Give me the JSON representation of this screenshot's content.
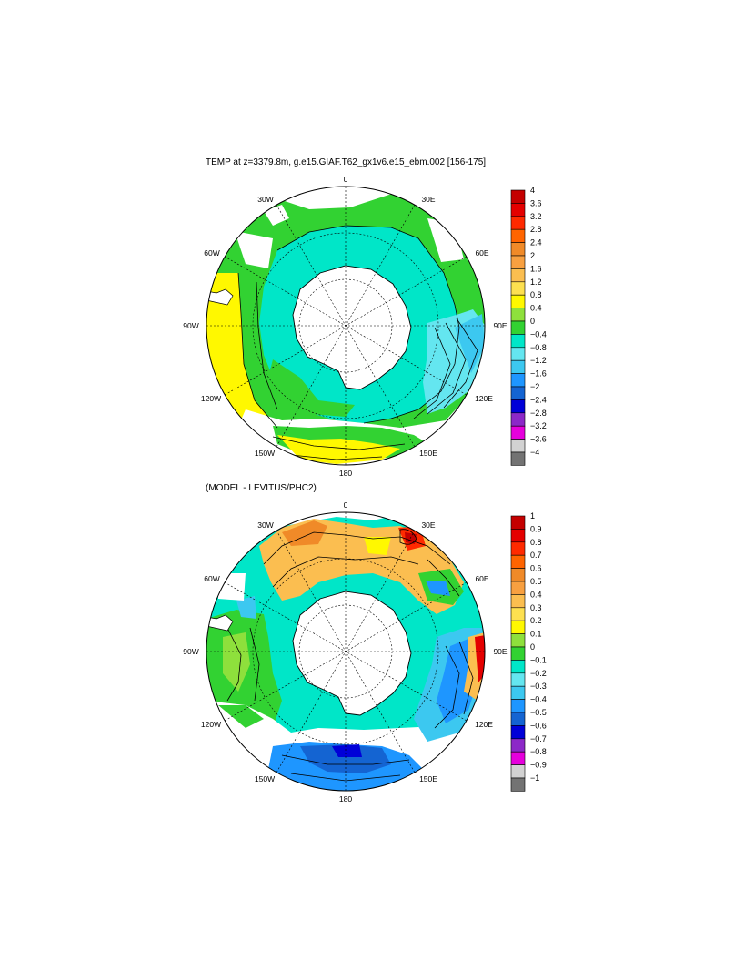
{
  "maps": [
    {
      "id": "temp",
      "title": "TEMP at z=3379.8m, g.e15.GIAF.T62_gx1v6.e15_ebm.002 [156-175]",
      "meridian_labels": {
        "lon_0": "0",
        "lon_30E": "30E",
        "lon_60E": "60E",
        "lon_90E": "90E",
        "lon_120E": "120E",
        "lon_150E": "150E",
        "lon_180": "180",
        "lon_150W": "150W",
        "lon_120W": "120W",
        "lon_90W": "90W",
        "lon_60W": "60W",
        "lon_30W": "30W"
      },
      "colorbar": {
        "labels": [
          "4",
          "3.6",
          "3.2",
          "2.8",
          "2.4",
          "2",
          "1.6",
          "1.2",
          "0.8",
          "0.4",
          "0",
          "−0.4",
          "−0.8",
          "−1.2",
          "−1.6",
          "−2",
          "−2.4",
          "−2.8",
          "−3.2",
          "−3.6",
          "−4"
        ],
        "colors": [
          "#c40000",
          "#e40000",
          "#ff2a00",
          "#ff6400",
          "#f08a28",
          "#f8a040",
          "#fbbe50",
          "#fde050",
          "#fff800",
          "#8ee03c",
          "#32d232",
          "#00e6c8",
          "#64e6f0",
          "#3cc8f0",
          "#1e96ff",
          "#1464d2",
          "#0000d8",
          "#8c28c8",
          "#e600dc",
          "#d2d2d2",
          "#737373"
        ]
      }
    },
    {
      "id": "diff",
      "title": "(MODEL - LEVITUS/PHC2)",
      "meridian_labels": {
        "lon_0": "0",
        "lon_30E": "30E",
        "lon_60E": "60E",
        "lon_90E": "90E",
        "lon_120E": "120E",
        "lon_150E": "150E",
        "lon_180": "180",
        "lon_150W": "150W",
        "lon_120W": "120W",
        "lon_90W": "90W",
        "lon_60W": "60W",
        "lon_30W": "30W"
      },
      "colorbar": {
        "labels": [
          "1",
          "0.9",
          "0.8",
          "0.7",
          "0.6",
          "0.5",
          "0.4",
          "0.3",
          "0.2",
          "0.1",
          "0",
          "−0.1",
          "−0.2",
          "−0.3",
          "−0.4",
          "−0.5",
          "−0.6",
          "−0.7",
          "−0.8",
          "−0.9",
          "−1"
        ],
        "colors": [
          "#c40000",
          "#e40000",
          "#ff2a00",
          "#ff6400",
          "#f08a28",
          "#f8a040",
          "#fbbe50",
          "#fde050",
          "#fff800",
          "#8ee03c",
          "#32d232",
          "#00e6c8",
          "#64e6f0",
          "#3cc8f0",
          "#1e96ff",
          "#1464d2",
          "#0000d8",
          "#8c28c8",
          "#e600dc",
          "#d2d2d2",
          "#737373"
        ]
      }
    }
  ],
  "colors": {
    "land": "#ffffff",
    "coast": "#000000",
    "missing": "#ffffff"
  }
}
